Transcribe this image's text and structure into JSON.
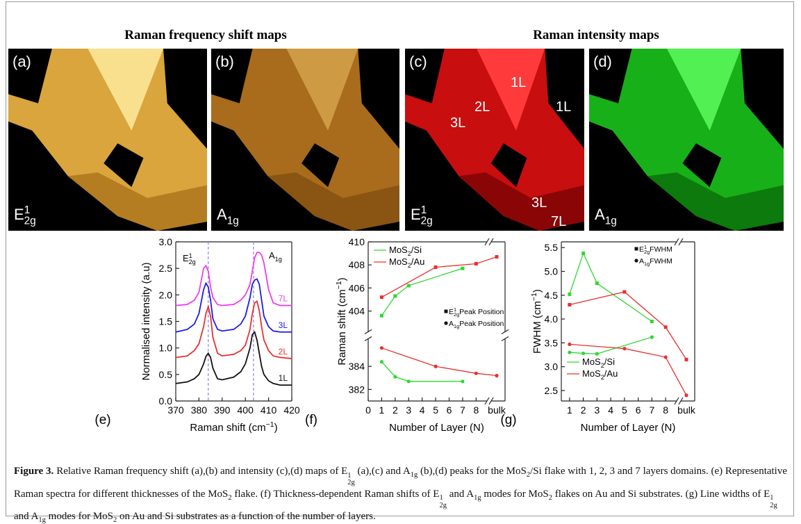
{
  "headings": [
    "Raman frequency shift maps",
    "Raman intensity maps"
  ],
  "maps": [
    {
      "panel": "(a)",
      "mode": [
        "E",
        {
          "sup": "1",
          "sub": "2g"
        }
      ]
    },
    {
      "panel": "(b)",
      "mode": [
        "A",
        {
          "sub": "1g"
        }
      ]
    },
    {
      "panel": "(c)",
      "mode": [
        "E",
        {
          "sup": "1",
          "sub": "2g"
        }
      ],
      "annotations": [
        "1L",
        "2L",
        "3L",
        "1L",
        "3L",
        "7L"
      ]
    },
    {
      "panel": "(d)",
      "mode": [
        "A",
        {
          "sub": "1g"
        }
      ]
    }
  ],
  "chart_data": [
    {
      "type": "line",
      "panel": "(e)",
      "xlabel": [
        "Raman shift (cm",
        {
          "sup": "−1"
        },
        ")"
      ],
      "ylabel": "Normalised intensity (a.u)",
      "xlim": [
        370,
        420
      ],
      "xticks": [
        370,
        380,
        390,
        400,
        410,
        420
      ],
      "ylim": [
        0,
        3
      ],
      "yticks": [
        {
          "value": 0,
          "label": "0.0"
        },
        0.5,
        {
          "value": 1,
          "label": "1.0"
        },
        1.5,
        {
          "value": 2,
          "label": "2.0"
        },
        2.5,
        {
          "value": 3,
          "label": "3.0"
        }
      ],
      "reference_lines": [
        384,
        403.5
      ],
      "reference_color": "#8c8cf0",
      "annotations": [
        [
          "E",
          {
            "sup": "1",
            "sub": "2g"
          }
        ],
        [
          "A",
          {
            "sub": "1g"
          }
        ]
      ],
      "x": [
        370,
        375,
        378,
        380,
        382,
        383,
        384,
        385,
        386,
        388,
        390,
        395,
        398,
        400,
        402,
        403,
        404,
        405,
        406,
        407,
        408,
        410,
        412,
        415,
        420
      ],
      "series": [
        {
          "name": "1L",
          "color": "#111111",
          "values": [
            0.33,
            0.36,
            0.42,
            0.5,
            0.7,
            0.84,
            0.9,
            0.82,
            0.62,
            0.42,
            0.4,
            0.45,
            0.55,
            0.7,
            1.0,
            1.25,
            1.3,
            1.15,
            0.9,
            0.65,
            0.5,
            0.38,
            0.33,
            0.3,
            0.3
          ]
        },
        {
          "name": "2L",
          "color": "#e8302f",
          "values": [
            0.82,
            0.85,
            0.95,
            1.08,
            1.4,
            1.65,
            1.78,
            1.6,
            1.2,
            0.9,
            0.85,
            0.88,
            0.95,
            1.05,
            1.35,
            1.65,
            1.85,
            1.88,
            1.7,
            1.4,
            1.15,
            0.95,
            0.85,
            0.82,
            0.8
          ]
        },
        {
          "name": "3L",
          "color": "#1a1aee",
          "values": [
            1.3,
            1.35,
            1.45,
            1.65,
            2.1,
            2.22,
            2.15,
            1.9,
            1.55,
            1.35,
            1.32,
            1.35,
            1.45,
            1.6,
            1.95,
            2.2,
            2.28,
            2.3,
            2.2,
            1.9,
            1.6,
            1.4,
            1.32,
            1.3,
            1.3
          ]
        },
        {
          "name": "7L",
          "color": "#ee3cee",
          "values": [
            1.8,
            1.82,
            1.9,
            2.05,
            2.5,
            2.55,
            2.45,
            2.15,
            1.95,
            1.82,
            1.8,
            1.82,
            1.9,
            2.0,
            2.2,
            2.45,
            2.7,
            2.8,
            2.8,
            2.75,
            2.6,
            2.1,
            1.85,
            1.8,
            1.8
          ]
        }
      ]
    },
    {
      "type": "line",
      "panel": "(f)",
      "xlabel": "Number of Layer (N)",
      "ylabel": [
        "Raman shift (cm",
        {
          "sup": "−1"
        },
        ")"
      ],
      "xlim": [
        0,
        8.6
      ],
      "xticks": [
        0,
        1,
        2,
        3,
        4,
        5,
        6,
        7,
        8
      ],
      "xextra": "bulk",
      "y_segments": [
        {
          "ylim": [
            381,
            386.4
          ],
          "yticks": [
            382,
            384
          ]
        },
        {
          "ylim": [
            402.2,
            410
          ],
          "yticks": [
            404,
            406,
            408,
            410
          ]
        }
      ],
      "legend": "upper left",
      "marker_legend": "center right",
      "markers": [
        {
          "shape": "square",
          "label": [
            "E",
            {
              "sup": "1",
              "sub": "2g"
            },
            "Peak Position"
          ]
        },
        {
          "shape": "circle",
          "label": [
            "A",
            {
              "sub": "1g"
            },
            "Peak Position"
          ]
        }
      ],
      "series": [
        {
          "name": [
            "MoS",
            {
              "sub": "2"
            },
            "/Si"
          ],
          "color": "#2ed82e",
          "lines": [
            {
              "marker": 0,
              "x": [
                1,
                2,
                3,
                7
              ],
              "values": [
                403.6,
                405.3,
                406.2,
                407.7
              ]
            },
            {
              "marker": 1,
              "x": [
                1,
                2,
                3,
                7
              ],
              "values": [
                384.4,
                383.1,
                382.7,
                382.7
              ]
            }
          ]
        },
        {
          "name": [
            "MoS",
            {
              "sub": "2"
            },
            "/Au"
          ],
          "color": "#e8302f",
          "lines": [
            {
              "marker": 0,
              "x": [
                1,
                5,
                8,
                "bulk"
              ],
              "values": [
                405.2,
                407.8,
                408.1,
                408.7
              ]
            },
            {
              "marker": 1,
              "x": [
                1,
                5,
                8,
                "bulk"
              ],
              "values": [
                385.6,
                384.0,
                383.4,
                383.2
              ]
            }
          ]
        }
      ]
    },
    {
      "type": "line",
      "panel": "(g)",
      "xlabel": "Number of Layer (N)",
      "ylabel": [
        "FWHM (cm",
        {
          "sup": "−1"
        },
        ")"
      ],
      "xlim": [
        0.4,
        8.6
      ],
      "xticks": [
        1,
        2,
        3,
        4,
        5,
        6,
        7,
        8
      ],
      "xextra": "bulk",
      "ylim": [
        2.28,
        5.62
      ],
      "yticks": [
        2.5,
        {
          "value": 3,
          "label": "3.0"
        },
        3.5,
        {
          "value": 4,
          "label": "4.0"
        },
        4.5,
        {
          "value": 5,
          "label": "5.0"
        },
        5.5
      ],
      "legend": "lower left",
      "marker_legend": "upper right",
      "markers": [
        {
          "shape": "square",
          "label": [
            "E",
            {
              "sup": "1",
              "sub": "2g"
            },
            "FWHM"
          ]
        },
        {
          "shape": "circle",
          "label": [
            "A",
            {
              "sub": "1g"
            },
            "FWHM"
          ]
        }
      ],
      "series": [
        {
          "name": [
            "MoS",
            {
              "sub": "2"
            },
            "/Si"
          ],
          "color": "#2ed82e",
          "lines": [
            {
              "marker": 0,
              "x": [
                1,
                2,
                3,
                7
              ],
              "values": [
                4.52,
                5.38,
                4.75,
                3.95
              ]
            },
            {
              "marker": 1,
              "x": [
                1,
                2,
                3,
                7
              ],
              "values": [
                3.3,
                3.28,
                3.27,
                3.62
              ]
            }
          ]
        },
        {
          "name": [
            "MoS",
            {
              "sub": "2"
            },
            "/Au"
          ],
          "color": "#e8302f",
          "lines": [
            {
              "marker": 0,
              "x": [
                1,
                5,
                8,
                "bulk"
              ],
              "values": [
                4.3,
                4.57,
                3.83,
                3.15
              ]
            },
            {
              "marker": 1,
              "x": [
                1,
                5,
                8,
                "bulk"
              ],
              "values": [
                3.47,
                3.38,
                3.2,
                2.4
              ]
            }
          ]
        }
      ]
    }
  ],
  "caption": {
    "label": "Figure 3.",
    "text": [
      "Relative Raman frequency shift (a),(b) and intensity (c),(d) maps of E",
      {
        "sup": "1",
        "sub": "2g"
      },
      " (a),(c) and A",
      {
        "sub": "1g"
      },
      " (b),(d) peaks for the MoS",
      {
        "sub": "2"
      },
      "/Si flake with 1, 2, 3 and 7 layers domains. (e) Representative Raman spectra for different thicknesses of the MoS",
      {
        "sub": "2"
      },
      " flake. (f) Thickness-dependent Raman shifts of E",
      {
        "sup": "1",
        "sub": "2g"
      },
      " and A",
      {
        "sub": "1g"
      },
      " modes for MoS",
      {
        "sub": "2"
      },
      " flakes on Au and Si substrates. (g) Line widths of E",
      {
        "sup": "1",
        "sub": "2g"
      },
      " and A",
      {
        "sub": "1g"
      },
      " modes for MoS",
      {
        "sub": "2"
      },
      " on Au and Si substrates as a function of the number of layers."
    ]
  }
}
